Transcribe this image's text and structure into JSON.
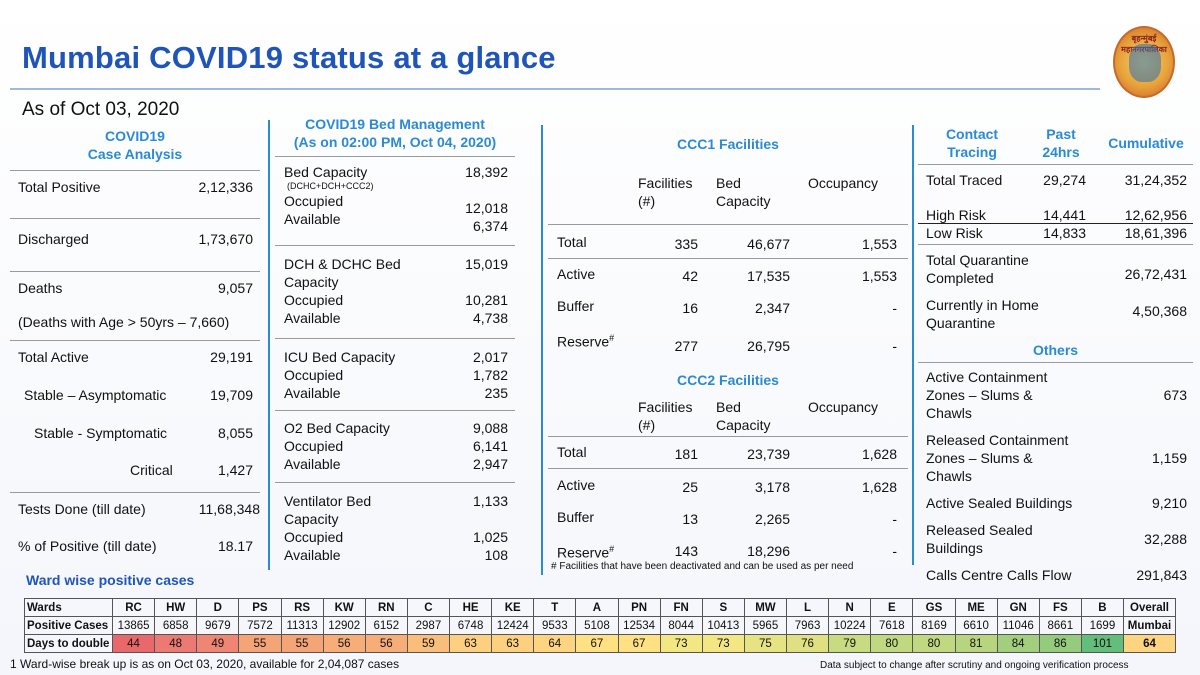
{
  "header": {
    "title": "Mumbai COVID19 status at a glance",
    "as_of": "As of Oct 03, 2020",
    "logo_text": "बृहन्मुंबई महानगरपालिका"
  },
  "case_analysis": {
    "heading_line1": "COVID19",
    "heading_line2": "Case Analysis",
    "total_positive_label": "Total Positive",
    "total_positive": "2,12,336",
    "discharged_label": "Discharged",
    "discharged": "1,73,670",
    "deaths_label": "Deaths",
    "deaths": "9,057",
    "deaths_age_note": "(Deaths with Age > 50yrs – 7,660)",
    "total_active_label": "Total Active",
    "total_active": "29,191",
    "stable_asym_label": "Stable – Asymptomatic",
    "stable_asym": "19,709",
    "stable_sym_label": "Stable - Symptomatic",
    "stable_sym": "8,055",
    "critical_label": "Critical",
    "critical": "1,427",
    "tests_label": "Tests Done (till date)",
    "tests": "11,68,348",
    "pct_positive_label": "% of Positive (till date)",
    "pct_positive": "18.17"
  },
  "bed_management": {
    "heading_line1": "COVID19 Bed Management",
    "heading_line2": "(As on 02:00 PM, Oct 04, 2020)",
    "bed_capacity_label": "Bed Capacity",
    "bed_capacity": "18,392",
    "bed_capacity_sub": "(DCHC+DCH+CCC2)",
    "occupied_label": "Occupied",
    "available_label": "Available",
    "bed_occupied": "12,018",
    "bed_available": "6,374",
    "dch_label_line1": "DCH & DCHC Bed",
    "dch_label_line2": "Capacity",
    "dch_capacity": "15,019",
    "dch_occupied": "10,281",
    "dch_available": "4,738",
    "icu_label": "ICU Bed Capacity",
    "icu_capacity": "2,017",
    "icu_occupied": "1,782",
    "icu_available": "235",
    "o2_label": "O2 Bed Capacity",
    "o2_capacity": "9,088",
    "o2_occupied": "6,141",
    "o2_available": "2,947",
    "vent_label_line1": "Ventilator Bed",
    "vent_label_line2": "Capacity",
    "vent_capacity": "1,133",
    "vent_occupied": "1,025",
    "vent_available": "108"
  },
  "ccc1": {
    "heading": "CCC1 Facilities",
    "col_facilities_1": "Facilities",
    "col_facilities_2": "(#)",
    "col_bed_1": "Bed",
    "col_bed_2": "Capacity",
    "col_occupancy": "Occupancy",
    "rows": [
      {
        "label": "Total",
        "facilities": "335",
        "bed": "46,677",
        "occupancy": "1,553"
      },
      {
        "label": "Active",
        "facilities": "42",
        "bed": "17,535",
        "occupancy": "1,553"
      },
      {
        "label": "Buffer",
        "facilities": "16",
        "bed": "2,347",
        "occupancy": "-"
      },
      {
        "label": "Reserve",
        "facilities": "277",
        "bed": "26,795",
        "occupancy": "-"
      }
    ]
  },
  "ccc2": {
    "heading": "CCC2 Facilities",
    "rows": [
      {
        "label": "Total",
        "facilities": "181",
        "bed": "23,739",
        "occupancy": "1,628"
      },
      {
        "label": "Active",
        "facilities": "25",
        "bed": "3,178",
        "occupancy": "1,628"
      },
      {
        "label": "Buffer",
        "facilities": "13",
        "bed": "2,265",
        "occupancy": "-"
      },
      {
        "label": "Reserve",
        "facilities": "143",
        "bed": "18,296",
        "occupancy": "-"
      }
    ],
    "reserve_mark": "#",
    "footnote": "# Facilities that have been deactivated and can be used as per need"
  },
  "contact_tracing": {
    "heading_line1": "Contact",
    "heading_line2": "Tracing",
    "past_line1": "Past",
    "past_line2": "24hrs",
    "cumulative": "Cumulative",
    "total_traced_label": "Total Traced",
    "total_traced_past": "29,274",
    "total_traced_cum": "31,24,352",
    "high_risk_label": "High Risk",
    "high_risk_past": "14,441",
    "high_risk_cum": "12,62,956",
    "low_risk_label": "Low Risk",
    "low_risk_past": "14,833",
    "low_risk_cum": "18,61,396",
    "tq_label_line1": "Total Quarantine",
    "tq_label_line2": "Completed",
    "tq_value": "26,72,431",
    "home_q_line1": "Currently in Home",
    "home_q_line2": "Quarantine",
    "home_q_value": "4,50,368"
  },
  "others": {
    "heading": "Others",
    "acz_line1": "Active Containment",
    "acz_line2": "Zones – Slums &",
    "acz_line3": "Chawls",
    "acz_value": "673",
    "rcz_line1": "Released Containment",
    "rcz_line2": "Zones – Slums &",
    "rcz_line3": "Chawls",
    "rcz_value": "1,159",
    "asb_label": "Active Sealed Buildings",
    "asb_value": "9,210",
    "rsb_line1": "Released Sealed",
    "rsb_line2": "Buildings",
    "rsb_value": "32,288",
    "calls_label": "Calls Centre Calls Flow",
    "calls_value": "291,843"
  },
  "ward": {
    "title": "Ward wise positive cases",
    "row_labels": [
      "Wards",
      "Positive Cases",
      "Days to double"
    ],
    "wards": [
      "RC",
      "HW",
      "D",
      "PS",
      "RS",
      "KW",
      "RN",
      "C",
      "HE",
      "KE",
      "T",
      "A",
      "PN",
      "FN",
      "S",
      "MW",
      "L",
      "N",
      "E",
      "GS",
      "ME",
      "GN",
      "FS",
      "B"
    ],
    "positive": [
      "13865",
      "6858",
      "9679",
      "7572",
      "11313",
      "12902",
      "6152",
      "2987",
      "6748",
      "12424",
      "9533",
      "5108",
      "12534",
      "8044",
      "10413",
      "5965",
      "7963",
      "10224",
      "7618",
      "8169",
      "6610",
      "11046",
      "8661",
      "1699"
    ],
    "days": [
      "44",
      "48",
      "49",
      "55",
      "55",
      "56",
      "56",
      "59",
      "63",
      "63",
      "64",
      "67",
      "67",
      "73",
      "73",
      "75",
      "76",
      "79",
      "80",
      "80",
      "81",
      "84",
      "86",
      "101"
    ],
    "day_colors": [
      "#e8686b",
      "#ed7a72",
      "#ef8673",
      "#f5a476",
      "#f5a476",
      "#f7ad78",
      "#f7ad78",
      "#fabe7b",
      "#fcd07f",
      "#fcd07f",
      "#fdd480",
      "#fee182",
      "#fee182",
      "#f2e783",
      "#f2e783",
      "#e6e383",
      "#dee081",
      "#c8db80",
      "#c0d880",
      "#c0d880",
      "#b7d57f",
      "#a2cf7e",
      "#94cb7d",
      "#63be7b"
    ],
    "overall_line1": "Overall",
    "overall_line2": "Mumbai",
    "overall_days": "64",
    "overall_color": "#fdd480"
  },
  "footer": {
    "note_left": "1 Ward-wise break up is as on Oct 03, 2020, available for 2,04,087 cases",
    "note_right": "Data subject to change after scrutiny and ongoing verification process"
  }
}
